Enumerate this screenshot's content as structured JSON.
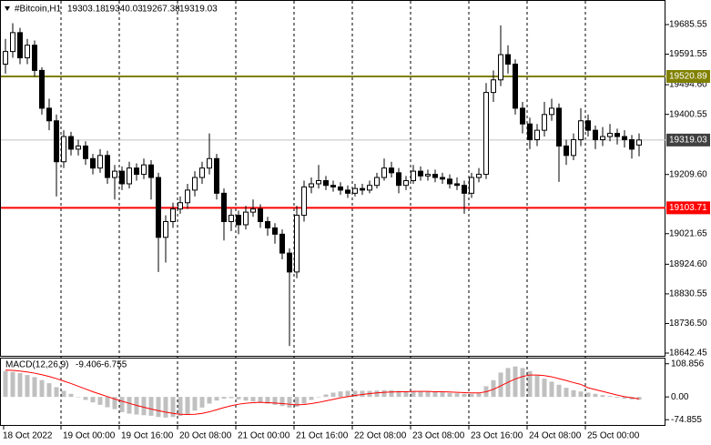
{
  "chart_data": [
    {
      "type": "candlestick",
      "title": "#Bitcoin,H1",
      "header_values": [
        19303.18,
        19340.03,
        19267.38,
        19319.03
      ],
      "ylim": [
        18630.9,
        19763.6
      ],
      "yticks": [
        19685.55,
        19591.55,
        {
          "value": 19494.6,
          "label": "19494.60"
        },
        19400.55,
        {
          "value": 19209.6,
          "label": "19209.60"
        },
        19021.65,
        {
          "value": 18924.6,
          "label": "18924.60"
        },
        18830.55,
        {
          "value": 18736.5,
          "label": "18736.50"
        },
        18642.45
      ],
      "levels": [
        {
          "value": 19520.89,
          "color": "#808000"
        },
        {
          "value": 19103.71,
          "color": "#ff0000"
        }
      ],
      "current_price": 19319.03,
      "xtick_labels": [
        "18 Oct 2022",
        "19 Oct 00:00",
        "19 Oct 16:00",
        "20 Oct 08:00",
        "21 Oct 00:00",
        "21 Oct 16:00",
        "22 Oct 08:00",
        "23 Oct 08:00",
        "23 Oct 16:00",
        "24 Oct 08:00",
        "25 Oct 00:00"
      ],
      "ohlc": [
        [
          19560,
          19640,
          19530,
          19600
        ],
        [
          19600,
          19690,
          19580,
          19660
        ],
        [
          19660,
          19675,
          19560,
          19580
        ],
        [
          19580,
          19640,
          19560,
          19620
        ],
        [
          19620,
          19635,
          19520,
          19540
        ],
        [
          19540,
          19550,
          19400,
          19420
        ],
        [
          19420,
          19450,
          19350,
          19380
        ],
        [
          19380,
          19400,
          19140,
          19250
        ],
        [
          19250,
          19350,
          19230,
          19330
        ],
        [
          19330,
          19345,
          19270,
          19290
        ],
        [
          19290,
          19320,
          19270,
          19300
        ],
        [
          19300,
          19315,
          19240,
          19260
        ],
        [
          19260,
          19275,
          19210,
          19230
        ],
        [
          19230,
          19290,
          19215,
          19270
        ],
        [
          19270,
          19285,
          19180,
          19200
        ],
        [
          19200,
          19240,
          19130,
          19220
        ],
        [
          19220,
          19235,
          19160,
          19180
        ],
        [
          19180,
          19250,
          19165,
          19230
        ],
        [
          19230,
          19245,
          19190,
          19210
        ],
        [
          19210,
          19260,
          19195,
          19240
        ],
        [
          19240,
          19255,
          19130,
          19200
        ],
        [
          19200,
          19215,
          18900,
          19010
        ],
        [
          19010,
          19080,
          18930,
          19060
        ],
        [
          19060,
          19120,
          19040,
          19100
        ],
        [
          19100,
          19140,
          19085,
          19120
        ],
        [
          19120,
          19180,
          19100,
          19160
        ],
        [
          19160,
          19220,
          19140,
          19200
        ],
        [
          19200,
          19250,
          19180,
          19230
        ],
        [
          19230,
          19340,
          19210,
          19260
        ],
        [
          19260,
          19275,
          19130,
          19150
        ],
        [
          19150,
          19165,
          19000,
          19060
        ],
        [
          19060,
          19100,
          19030,
          19080
        ],
        [
          19080,
          19095,
          19020,
          19050
        ],
        [
          19050,
          19110,
          19035,
          19090
        ],
        [
          19090,
          19130,
          19075,
          19100
        ],
        [
          19100,
          19115,
          19040,
          19060
        ],
        [
          19060,
          19075,
          19015,
          19040
        ],
        [
          19040,
          19055,
          18990,
          19020
        ],
        [
          19020,
          19035,
          18940,
          18960
        ],
        [
          18960,
          18975,
          18665,
          18900
        ],
        [
          18900,
          19110,
          18880,
          19080
        ],
        [
          19080,
          19190,
          19060,
          19170
        ],
        [
          19170,
          19200,
          19150,
          19180
        ],
        [
          19180,
          19240,
          19165,
          19190
        ],
        [
          19190,
          19205,
          19160,
          19175
        ],
        [
          19175,
          19190,
          19155,
          19170
        ],
        [
          19170,
          19185,
          19145,
          19160
        ],
        [
          19160,
          19175,
          19135,
          19150
        ],
        [
          19150,
          19180,
          19140,
          19165
        ],
        [
          19165,
          19180,
          19145,
          19160
        ],
        [
          19160,
          19190,
          19150,
          19175
        ],
        [
          19175,
          19215,
          19165,
          19200
        ],
        [
          19200,
          19260,
          19190,
          19230
        ],
        [
          19230,
          19250,
          19200,
          19215
        ],
        [
          19215,
          19230,
          19150,
          19175
        ],
        [
          19175,
          19205,
          19160,
          19190
        ],
        [
          19190,
          19240,
          19180,
          19220
        ],
        [
          19220,
          19235,
          19190,
          19205
        ],
        [
          19205,
          19225,
          19190,
          19210
        ],
        [
          19210,
          19225,
          19185,
          19200
        ],
        [
          19200,
          19215,
          19180,
          19195
        ],
        [
          19195,
          19210,
          19165,
          19180
        ],
        [
          19180,
          19200,
          19160,
          19175
        ],
        [
          19175,
          19190,
          19085,
          19150
        ],
        [
          19150,
          19215,
          19135,
          19200
        ],
        [
          19200,
          19230,
          19185,
          19210
        ],
        [
          19210,
          19500,
          19195,
          19470
        ],
        [
          19470,
          19540,
          19440,
          19510
        ],
        [
          19510,
          19683,
          19490,
          19590
        ],
        [
          19590,
          19620,
          19530,
          19560
        ],
        [
          19560,
          19575,
          19400,
          19420
        ],
        [
          19420,
          19440,
          19340,
          19370
        ],
        [
          19370,
          19390,
          19290,
          19320
        ],
        [
          19320,
          19370,
          19300,
          19350
        ],
        [
          19350,
          19440,
          19330,
          19400
        ],
        [
          19400,
          19450,
          19380,
          19420
        ],
        [
          19420,
          19435,
          19186,
          19300
        ],
        [
          19300,
          19320,
          19240,
          19270
        ],
        [
          19270,
          19340,
          19255,
          19320
        ],
        [
          19320,
          19420,
          19300,
          19380
        ],
        [
          19380,
          19400,
          19330,
          19350
        ],
        [
          19350,
          19365,
          19290,
          19320
        ],
        [
          19320,
          19360,
          19300,
          19330
        ],
        [
          19330,
          19370,
          19315,
          19340
        ],
        [
          19340,
          19355,
          19305,
          19330
        ],
        [
          19330,
          19350,
          19295,
          19320
        ],
        [
          19320,
          19335,
          19260,
          19290
        ],
        [
          19303.18,
          19340.03,
          19267.38,
          19319.03
        ]
      ]
    },
    {
      "type": "macd",
      "title": "MACD(12,26,9)",
      "header_values": [
        -9.406,
        -6.755
      ],
      "ylim": [
        -89.2,
        126.0
      ],
      "yticks": [
        108.856,
        {
          "value": 0,
          "label": "0.00"
        },
        -74.855
      ],
      "histogram_color": "#c0c0c0",
      "signal_color": "#ff0000",
      "histogram": [
        85,
        82,
        78,
        72,
        65,
        55,
        45,
        32,
        20,
        10,
        0,
        -10,
        -18,
        -26,
        -34,
        -40,
        -50,
        -55,
        -58,
        -60,
        -62,
        -66,
        -68,
        -66,
        -62,
        -56,
        -45,
        -35,
        -22,
        -12,
        -6,
        -4,
        -8,
        -12,
        -15,
        -18,
        -22,
        -26,
        -30,
        -35,
        -32,
        -22,
        -10,
        0,
        8,
        14,
        18,
        20,
        20,
        20,
        20,
        21,
        22,
        22,
        20,
        19,
        19,
        18,
        17,
        16,
        15,
        13,
        12,
        10,
        10,
        12,
        35,
        55,
        80,
        95,
        100,
        95,
        85,
        70,
        60,
        50,
        40,
        30,
        22,
        18,
        14,
        10,
        6,
        3,
        -3,
        -6,
        -8,
        -9.406
      ],
      "signal": [
        88,
        87,
        85,
        82,
        78,
        73,
        67,
        60,
        52,
        44,
        35,
        26,
        17,
        9,
        1,
        -7,
        -14,
        -21,
        -28,
        -34,
        -40,
        -45,
        -50,
        -54,
        -57,
        -58,
        -57,
        -54,
        -49,
        -42,
        -35,
        -29,
        -24,
        -21,
        -19,
        -18,
        -19,
        -20,
        -22,
        -24,
        -26,
        -25,
        -22,
        -18,
        -13,
        -8,
        -3,
        1,
        5,
        8,
        11,
        13,
        15,
        16,
        17,
        17,
        18,
        18,
        18,
        17,
        17,
        16,
        15,
        14,
        13,
        13,
        17,
        25,
        36,
        48,
        59,
        67,
        72,
        72,
        70,
        66,
        60,
        54,
        47,
        41,
        30,
        24,
        18,
        12,
        6,
        1,
        -3,
        -6.755
      ]
    }
  ]
}
